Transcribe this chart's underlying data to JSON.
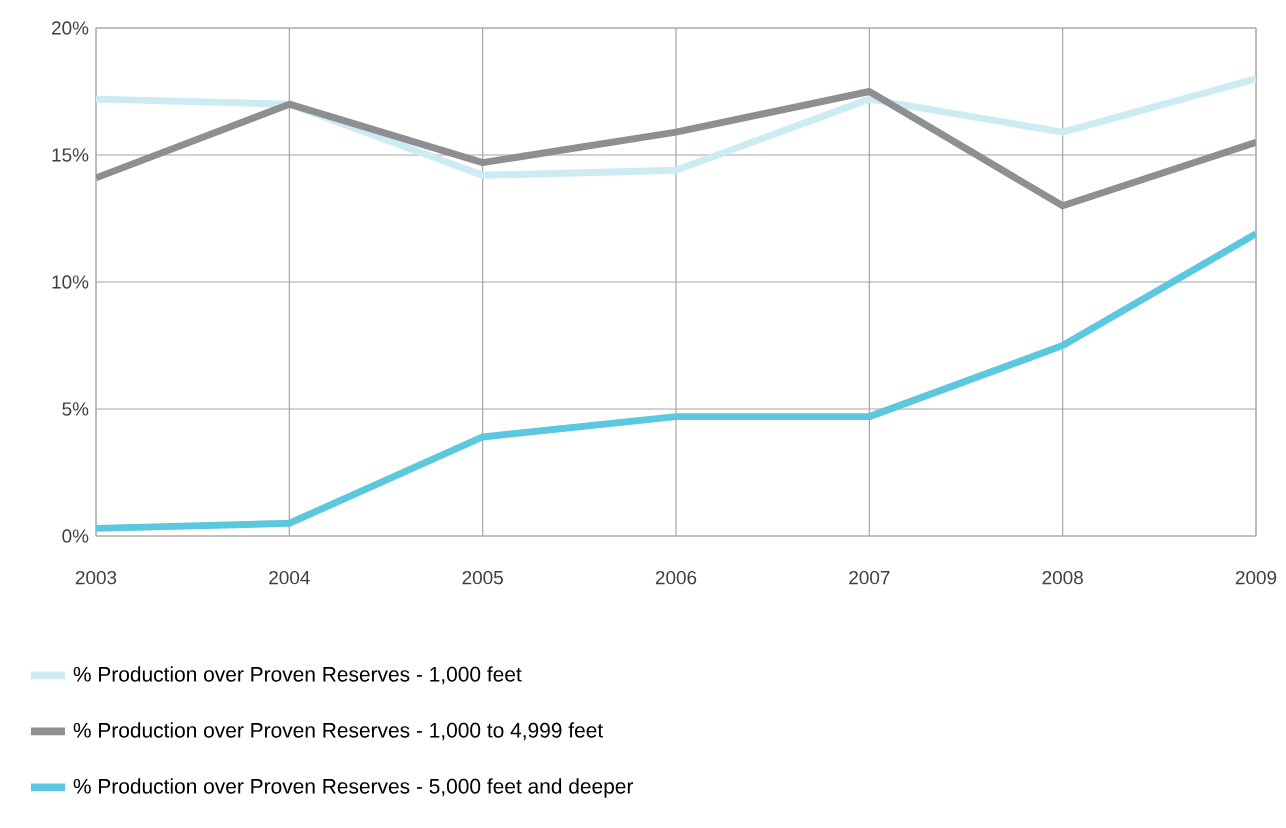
{
  "chart_data": {
    "type": "line",
    "x": [
      2003,
      2004,
      2005,
      2006,
      2007,
      2008,
      2009
    ],
    "series": [
      {
        "name": "% Production over Proven Reserves - 1,000 feet",
        "color": "#cdebf2",
        "values": [
          17.2,
          17.0,
          14.2,
          14.4,
          17.2,
          15.9,
          18.0
        ]
      },
      {
        "name": "% Production over Proven Reserves - 1,000 to 4,999 feet",
        "color": "#8e8f93",
        "values": [
          14.1,
          17.0,
          14.7,
          15.9,
          17.5,
          13.0,
          15.5
        ]
      },
      {
        "name": "% Production over Proven Reserves - 5,000 feet and deeper",
        "color": "#5bc8e0",
        "values": [
          0.3,
          0.5,
          3.9,
          4.7,
          4.7,
          7.5,
          11.9
        ]
      }
    ],
    "xlim": [
      2003,
      2009
    ],
    "xticks": [
      2003,
      2004,
      2005,
      2006,
      2007,
      2008,
      2009
    ],
    "ylim": [
      0,
      20
    ],
    "yticks": [
      {
        "value": 0,
        "label": "0%"
      },
      {
        "value": 5,
        "label": "5%"
      },
      {
        "value": 10,
        "label": "10%"
      },
      {
        "value": 15,
        "label": "15%"
      },
      {
        "value": 20,
        "label": "20%"
      }
    ],
    "grid": true,
    "legend": "bottom",
    "marker": "none",
    "line_style": "solid"
  }
}
